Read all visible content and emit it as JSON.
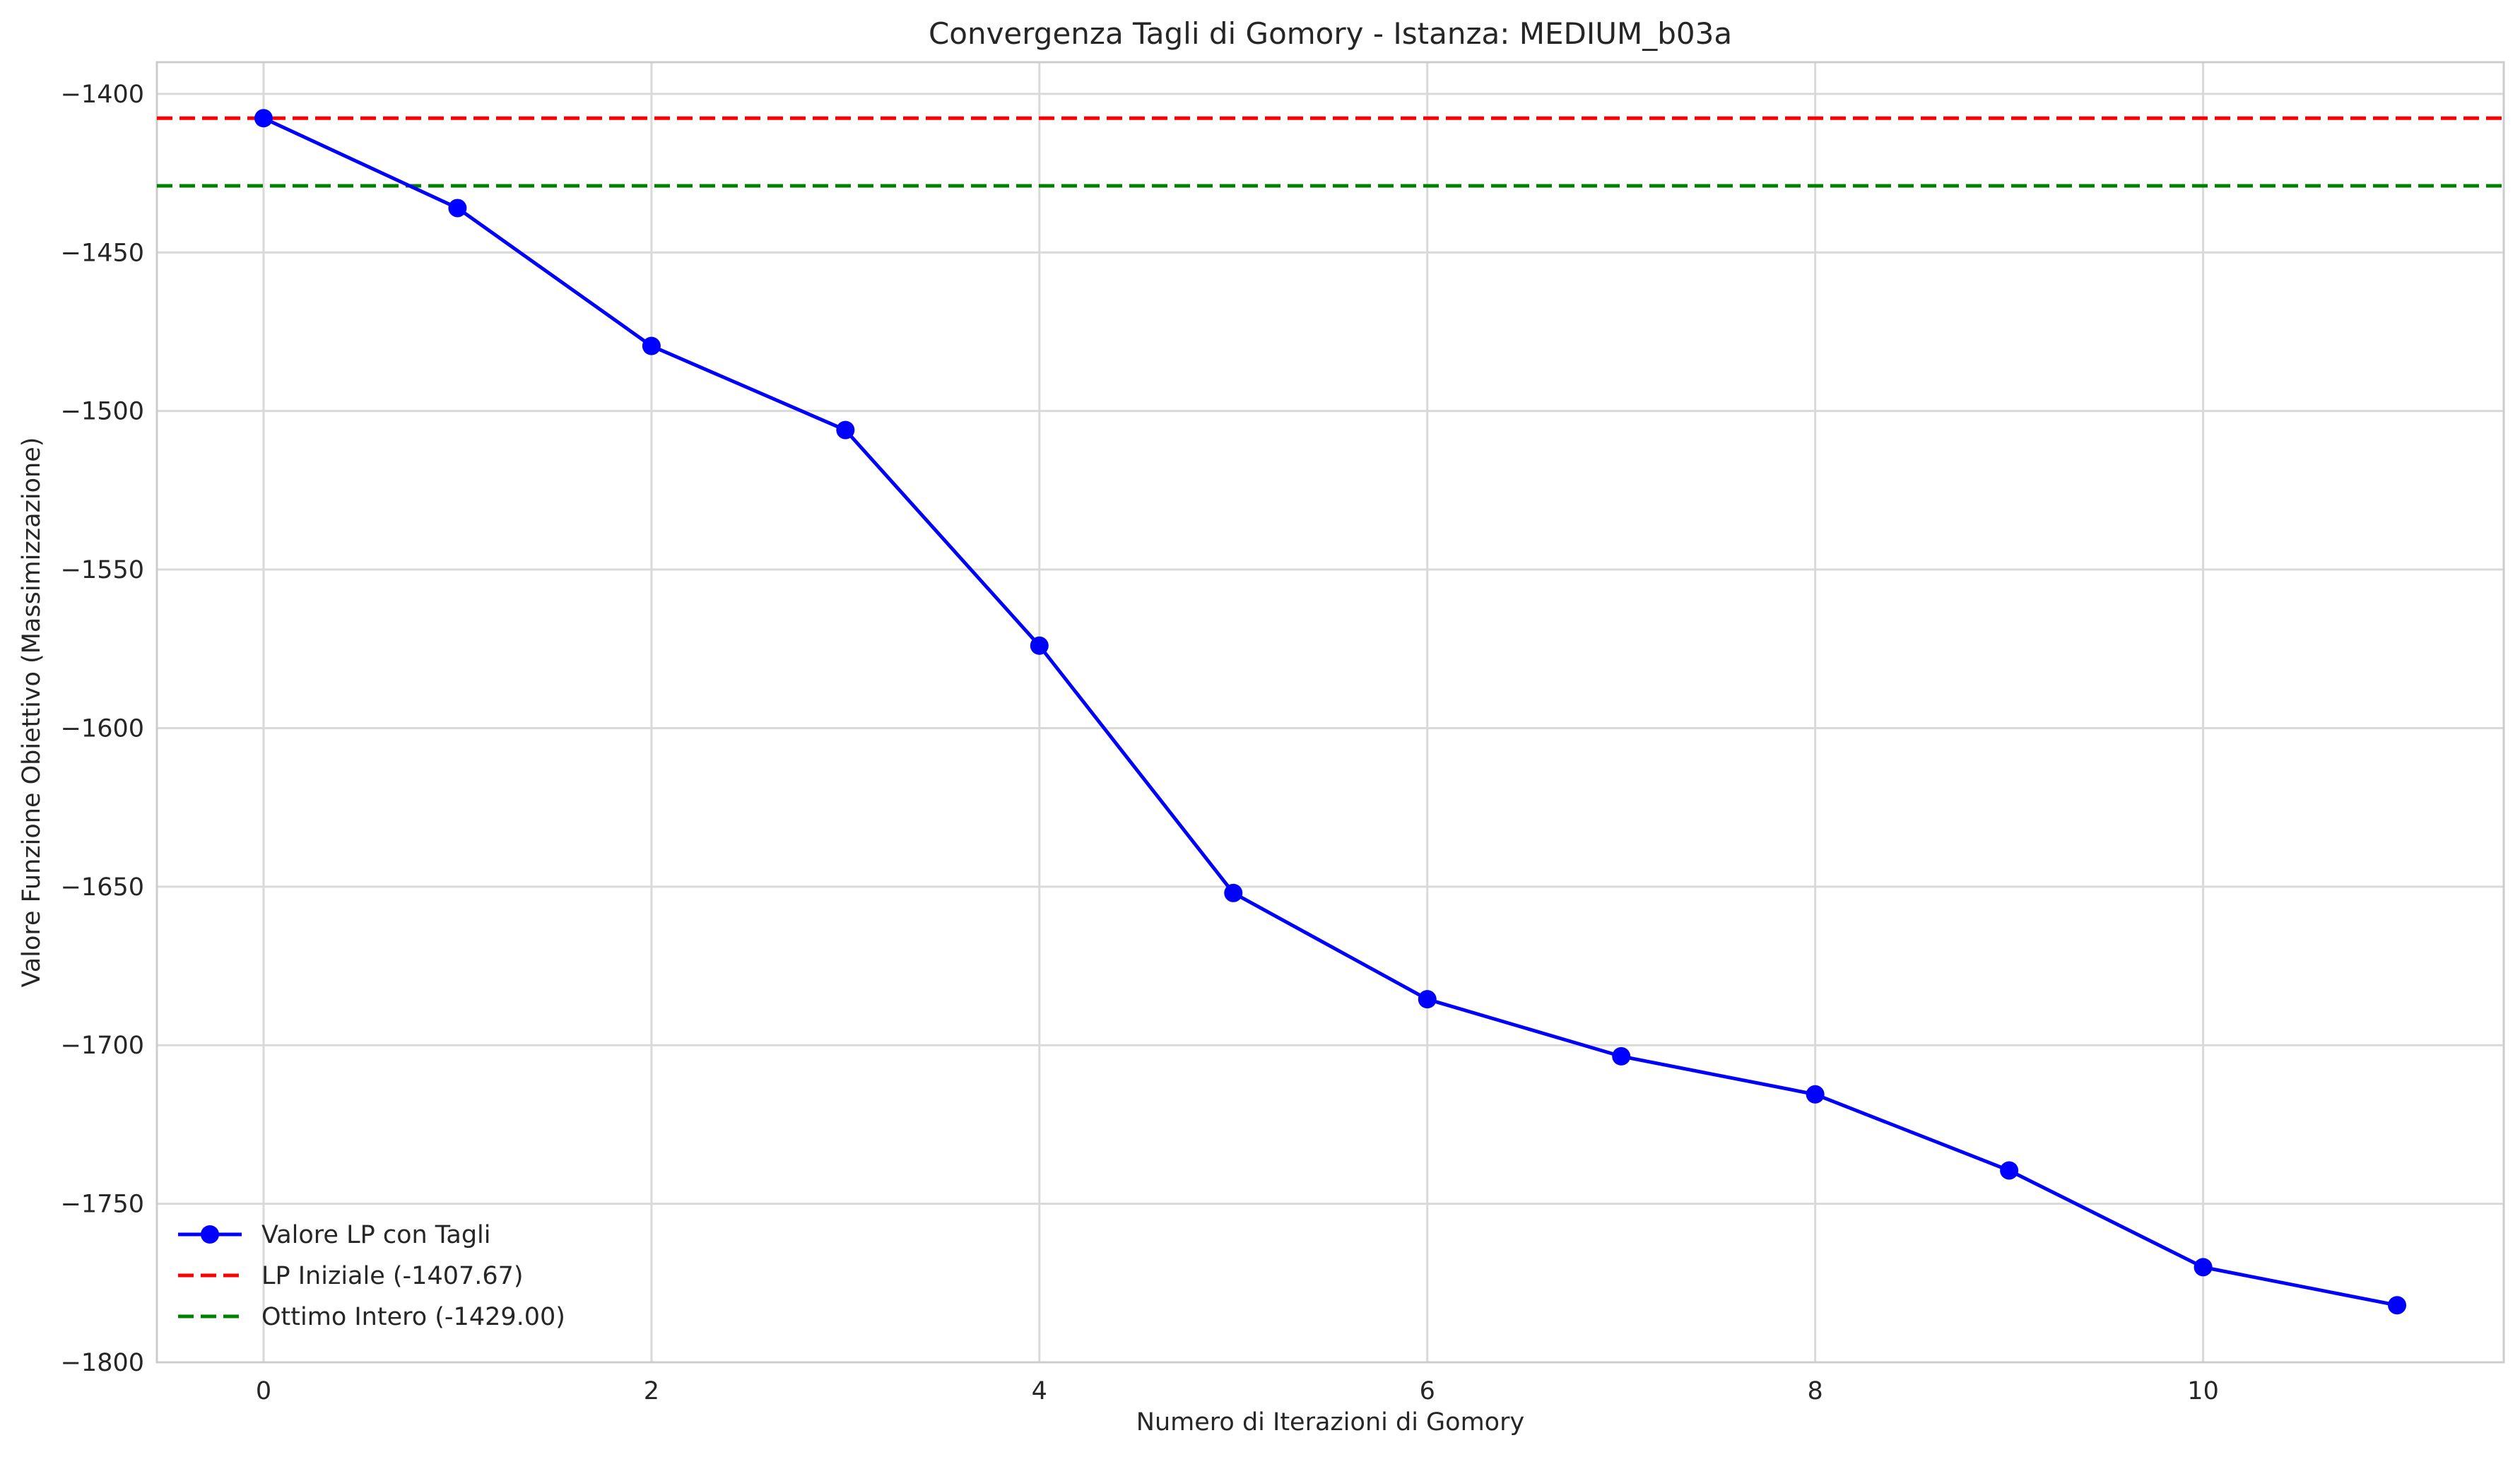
{
  "chart_data": {
    "type": "line",
    "title": "Convergenza Tagli di Gomory - Istanza: MEDIUM_b03a",
    "xlabel": "Numero di Iterazioni di Gomory",
    "ylabel": "Valore Funzione Obiettivo (Massimizzazione)",
    "xlim": [
      -0.55,
      11.55
    ],
    "ylim": [
      -1800,
      -1390
    ],
    "xticks": [
      0,
      2,
      4,
      6,
      8,
      10
    ],
    "xtick_labels": [
      "0",
      "2",
      "4",
      "6",
      "8",
      "10"
    ],
    "yticks": [
      -1400,
      -1450,
      -1500,
      -1550,
      -1600,
      -1650,
      -1700,
      -1750,
      -1800
    ],
    "ytick_labels": [
      "−1400",
      "−1450",
      "−1500",
      "−1550",
      "−1600",
      "−1650",
      "−1700",
      "−1750",
      "−1800"
    ],
    "grid": true,
    "legend_position": "lower-left",
    "series": [
      {
        "name": "Valore LP con Tagli",
        "color": "#0000ff",
        "marker": "circle",
        "x": [
          0,
          1,
          2,
          3,
          4,
          5,
          6,
          7,
          8,
          9,
          10,
          11
        ],
        "y": [
          -1407.67,
          -1436.0,
          -1479.5,
          -1506.0,
          -1574.0,
          -1652.0,
          -1685.5,
          -1703.5,
          -1715.5,
          -1739.5,
          -1770.0,
          -1782.0
        ]
      }
    ],
    "reference_lines": [
      {
        "name": "LP Iniziale (-1407.67)",
        "y": -1407.67,
        "color": "#ff0000",
        "style": "dashed"
      },
      {
        "name": "Ottimo Intero (-1429.00)",
        "y": -1429.0,
        "color": "#008000",
        "style": "dashed"
      }
    ]
  }
}
